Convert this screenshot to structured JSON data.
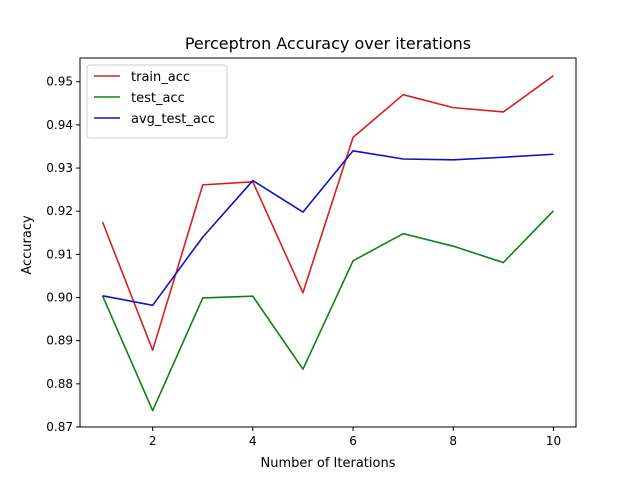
{
  "chart_data": {
    "type": "line",
    "title": "Perceptron Accuracy over iterations",
    "xlabel": "Number of Iterations",
    "ylabel": "Accuracy",
    "x": [
      1,
      2,
      3,
      4,
      5,
      6,
      7,
      8,
      9,
      10
    ],
    "xlim": [
      0.55,
      10.45
    ],
    "ylim": [
      0.87,
      0.9555
    ],
    "xticks": [
      2,
      4,
      6,
      8,
      10
    ],
    "yticks": [
      0.87,
      0.88,
      0.89,
      0.9,
      0.91,
      0.92,
      0.93,
      0.94,
      0.95
    ],
    "ytick_labels": [
      "0.87",
      "0.88",
      "0.89",
      "0.90",
      "0.91",
      "0.92",
      "0.93",
      "0.94",
      "0.95"
    ],
    "grid": false,
    "legend_position": "top-left",
    "series": [
      {
        "name": "train_acc",
        "color": "#d62020",
        "values": [
          0.9175,
          0.8878,
          0.9261,
          0.9268,
          0.9011,
          0.9371,
          0.947,
          0.944,
          0.943,
          0.9514
        ]
      },
      {
        "name": "test_acc",
        "color": "#108010",
        "values": [
          0.9004,
          0.8738,
          0.8999,
          0.9003,
          0.8834,
          0.9085,
          0.9148,
          0.9119,
          0.9081,
          0.9201
        ]
      },
      {
        "name": "avg_test_acc",
        "color": "#1010c8",
        "values": [
          0.9004,
          0.8982,
          0.914,
          0.9271,
          0.9198,
          0.934,
          0.9321,
          0.9319,
          0.9325,
          0.9332
        ]
      }
    ]
  }
}
